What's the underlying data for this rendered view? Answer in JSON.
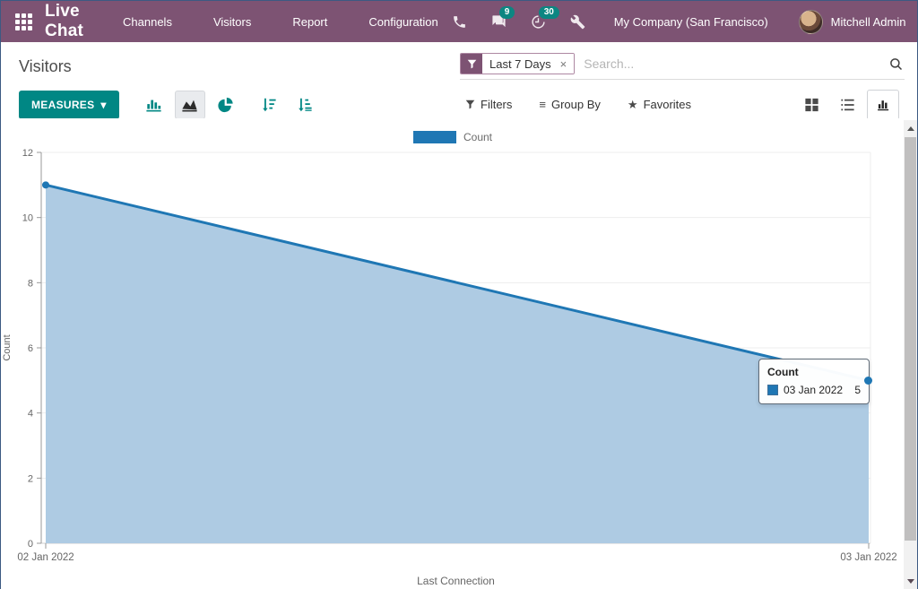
{
  "theme": {
    "navbar_bg": "#7d5373",
    "accent": "#008784",
    "badge": "#0c8682",
    "chart_line": "#1f77b4",
    "chart_fill": "#aecbe3"
  },
  "navbar": {
    "app_title": "Live Chat",
    "menu_items": [
      "Channels",
      "Visitors",
      "Report",
      "Configuration"
    ],
    "messages_badge": "9",
    "activities_badge": "30",
    "company": "My Company (San Francisco)",
    "user": "Mitchell Admin"
  },
  "control_panel": {
    "title": "Visitors",
    "search": {
      "facet_label": "Last 7 Days",
      "facet_remove": "×",
      "placeholder": "Search..."
    },
    "measures_label": "MEASURES",
    "measures_caret": "▾",
    "filters_label": "Filters",
    "group_by_label": "Group By",
    "favorites_label": "Favorites"
  },
  "icons": {
    "group_by": "≡",
    "favorites_star": "★"
  },
  "chart_data": {
    "type": "area",
    "title": "",
    "x": [
      "02 Jan 2022",
      "03 Jan 2022"
    ],
    "series": [
      {
        "name": "Count",
        "values": [
          11,
          5
        ]
      }
    ],
    "xlabel": "Last Connection",
    "ylabel": "Count",
    "ylim": [
      0,
      12
    ],
    "yticks": [
      0,
      2,
      4,
      6,
      8,
      10,
      12
    ],
    "legend": [
      "Count"
    ],
    "legend_position": "top",
    "grid": true
  },
  "tooltip": {
    "title": "Count",
    "row_label": "03 Jan 2022",
    "row_value": "5"
  }
}
